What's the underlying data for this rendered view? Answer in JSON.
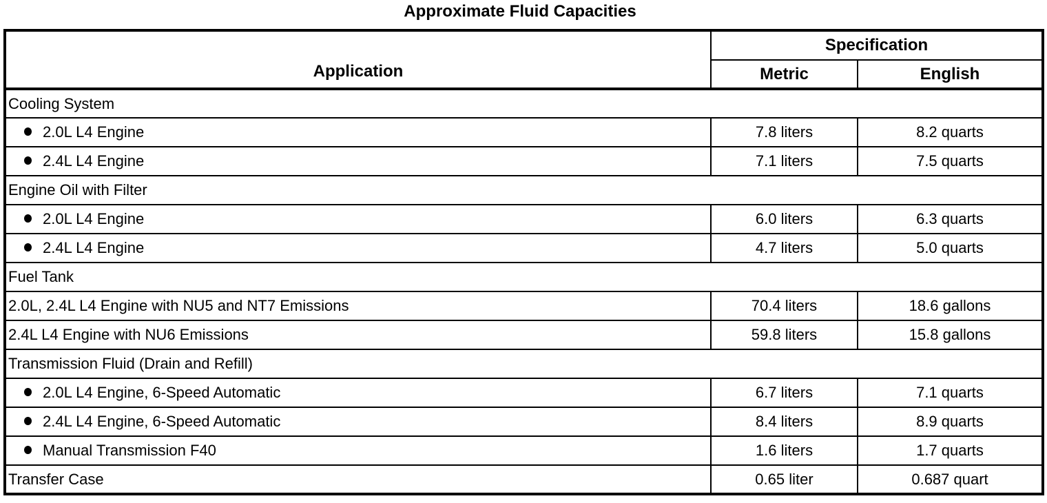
{
  "title": "Approximate Fluid Capacities",
  "table": {
    "header": {
      "application": "Application",
      "specification": "Specification",
      "metric": "Metric",
      "english": "English"
    },
    "rows": [
      {
        "type": "section",
        "label": "Cooling System"
      },
      {
        "type": "bullet",
        "label": "2.0L L4 Engine",
        "metric": "7.8 liters",
        "english": "8.2 quarts"
      },
      {
        "type": "bullet",
        "label": "2.4L L4 Engine",
        "metric": "7.1 liters",
        "english": "7.5 quarts"
      },
      {
        "type": "section",
        "label": "Engine Oil with Filter"
      },
      {
        "type": "bullet",
        "label": "2.0L L4 Engine",
        "metric": "6.0 liters",
        "english": "6.3 quarts"
      },
      {
        "type": "bullet",
        "label": "2.4L L4 Engine",
        "metric": "4.7 liters",
        "english": "5.0 quarts"
      },
      {
        "type": "section",
        "label": "Fuel Tank"
      },
      {
        "type": "plain",
        "label": "2.0L, 2.4L L4 Engine with NU5 and NT7 Emissions",
        "metric": "70.4 liters",
        "english": "18.6 gallons"
      },
      {
        "type": "plain",
        "label": "2.4L L4 Engine with NU6 Emissions",
        "metric": "59.8 liters",
        "english": "15.8 gallons"
      },
      {
        "type": "section",
        "label": "Transmission Fluid (Drain and Refill)"
      },
      {
        "type": "bullet",
        "label": "2.0L L4 Engine, 6-Speed Automatic",
        "metric": "6.7 liters",
        "english": "7.1 quarts"
      },
      {
        "type": "bullet",
        "label": "2.4L L4 Engine, 6-Speed Automatic",
        "metric": "8.4 liters",
        "english": "8.9 quarts"
      },
      {
        "type": "bullet",
        "label": "Manual Transmission F40",
        "metric": "1.6 liters",
        "english": "1.7 quarts"
      },
      {
        "type": "plain",
        "label": "Transfer Case",
        "metric": "0.65 liter",
        "english": "0.687 quart"
      }
    ],
    "text_color": "#000000",
    "line_color": "#000000",
    "background_color": "#ffffff"
  }
}
